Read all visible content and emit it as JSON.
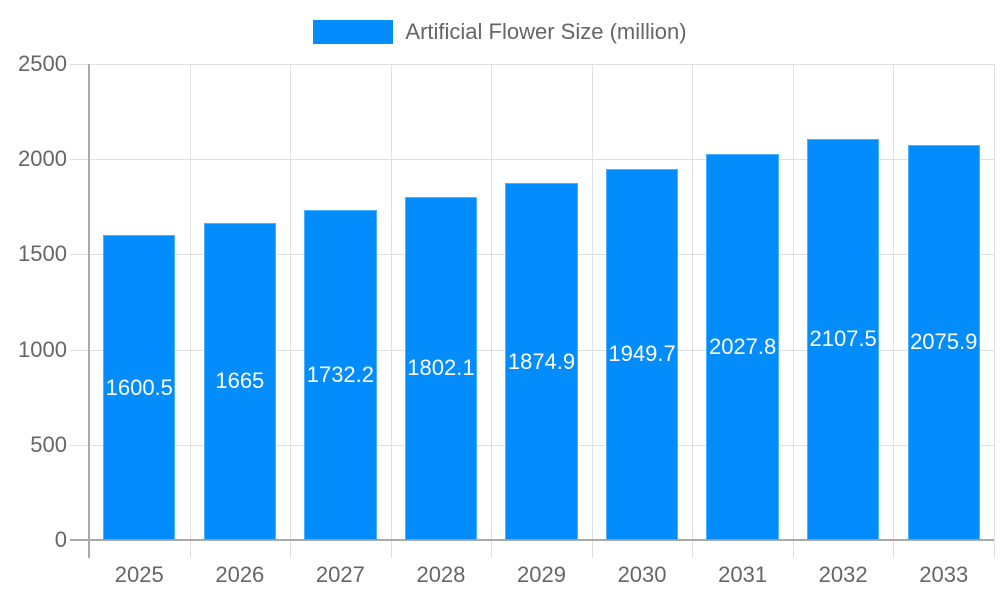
{
  "chart_data": {
    "type": "bar",
    "title": "",
    "xlabel": "",
    "ylabel": "",
    "categories": [
      "2025",
      "2026",
      "2027",
      "2028",
      "2029",
      "2030",
      "2031",
      "2032",
      "2033"
    ],
    "series": [
      {
        "name": "Artificial Flower Size (million)",
        "color": "#038cfc",
        "values": [
          1600.5,
          1665,
          1732.2,
          1802.1,
          1874.9,
          1949.7,
          2027.8,
          2107.5,
          2075.9
        ]
      }
    ],
    "ylim": [
      0,
      2500
    ],
    "yticks": [
      "0",
      "500",
      "1000",
      "1500",
      "2000",
      "2500"
    ],
    "data_labels": [
      "1600.5",
      "1665",
      "1732.2",
      "1802.1",
      "1874.9",
      "1949.7",
      "2027.8",
      "2107.5",
      "2075.9"
    ],
    "grid": true,
    "legend_position": "top"
  },
  "legend": {
    "label": "Artificial Flower Size (million)",
    "color": "#038cfc"
  }
}
